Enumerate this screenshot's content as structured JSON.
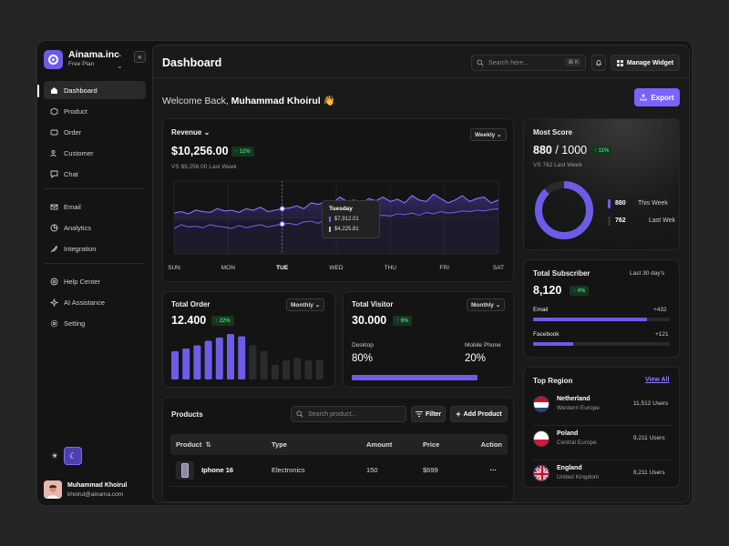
{
  "brand": {
    "name": "Ainama.inc",
    "plan": "Free Plan"
  },
  "sidebar": {
    "items": [
      {
        "label": "Dashboard"
      },
      {
        "label": "Product"
      },
      {
        "label": "Order"
      },
      {
        "label": "Customer"
      },
      {
        "label": "Chat"
      },
      {
        "label": "Email"
      },
      {
        "label": "Analytics"
      },
      {
        "label": "Integration"
      },
      {
        "label": "Help Center"
      },
      {
        "label": "AI Assistance"
      },
      {
        "label": "Setting"
      }
    ]
  },
  "user": {
    "name": "Muhammad Khoirul",
    "email": "khoirul@ainama.com"
  },
  "header": {
    "title": "Dashboard",
    "search_placeholder": "Search here...",
    "shortcut": "⌘ K",
    "manage_widget": "Manage Widget"
  },
  "welcome": {
    "prefix": "Welcome Back,",
    "name": "Muhammad Khoirul",
    "emoji": "👋",
    "export_label": "Export"
  },
  "revenue": {
    "title": "Revenue",
    "period": "Weekly",
    "value": "$10,256.00",
    "change": "↑ 12%",
    "compare": "VS $9,256.00 Last Week",
    "days": [
      "SUN",
      "MON",
      "TUE",
      "WED",
      "THU",
      "FRI",
      "SAT"
    ],
    "tooltip": {
      "day": "Tuesday",
      "v1": "$7,912.01",
      "v2": "$4,225.81"
    },
    "series_upper": [
      0.56,
      0.58,
      0.55,
      0.6,
      0.58,
      0.57,
      0.62,
      0.59,
      0.6,
      0.57,
      0.62,
      0.6,
      0.64,
      0.58,
      0.6,
      0.62,
      0.63,
      0.66,
      0.62,
      0.7,
      0.68,
      0.72,
      0.7,
      0.78,
      0.72,
      0.74,
      0.68,
      0.76,
      0.73,
      0.78,
      0.72,
      0.75,
      0.7,
      0.8,
      0.74,
      0.72,
      0.82,
      0.76,
      0.7,
      0.74,
      0.8,
      0.72,
      0.76,
      0.78,
      0.7,
      0.74
    ],
    "series_lower": [
      0.35,
      0.4,
      0.37,
      0.38,
      0.36,
      0.4,
      0.38,
      0.37,
      0.35,
      0.39,
      0.36,
      0.38,
      0.4,
      0.37,
      0.39,
      0.41,
      0.42,
      0.4,
      0.44,
      0.45,
      0.42,
      0.47,
      0.46,
      0.5,
      0.48,
      0.47,
      0.52,
      0.5,
      0.52,
      0.53,
      0.52,
      0.55,
      0.54,
      0.56,
      0.53,
      0.57,
      0.55,
      0.58,
      0.56,
      0.57,
      0.59,
      0.58,
      0.6,
      0.59,
      0.61,
      0.62
    ]
  },
  "most_score": {
    "title": "Most Score",
    "value": "880",
    "total": "/ 1000",
    "change": "↑ 11%",
    "compare": "VS 762 Last Week",
    "this_week_value": "880",
    "this_week_label": "This Week",
    "last_week_value": "762",
    "last_week_label": "Last Wek",
    "fraction": 0.88
  },
  "total_order": {
    "title": "Total Order",
    "period": "Monthly",
    "value": "12.400",
    "change": "↑ 22%",
    "bars": [
      0.62,
      0.68,
      0.75,
      0.85,
      0.92,
      1.0,
      0.95,
      0.75,
      0.62,
      0.32,
      0.42,
      0.47,
      0.42,
      0.42
    ],
    "highlight_count": 7
  },
  "total_visitor": {
    "title": "Total Visitor",
    "period": "Monthly",
    "value": "30.000",
    "change": "↑ 9%",
    "desktop_label": "Desktop",
    "desktop_pct": "80%",
    "mobile_label": "Mobile Phone",
    "mobile_pct": "20%",
    "desktop_fraction": 0.8
  },
  "subscriber": {
    "title": "Total Subscriber",
    "period": "Last 30 day's",
    "value": "8,120",
    "change": "↑ 4%",
    "email_label": "Email",
    "email_delta": "+432",
    "email_fraction": 0.83,
    "facebook_label": "Facebook",
    "facebook_delta": "+121",
    "facebook_fraction": 0.29
  },
  "products": {
    "title": "Products",
    "search_placeholder": "Search product...",
    "filter_label": "Filter",
    "add_label": "Add Product",
    "columns": [
      "Product",
      "Type",
      "Amount",
      "Price",
      "Action"
    ],
    "rows": [
      {
        "name": "Iphone 16",
        "type": "Electronics",
        "amount": "150",
        "price": "$699",
        "action": "···"
      }
    ]
  },
  "regions": {
    "title": "Top Region",
    "view_all": "View All",
    "items": [
      {
        "name": "Netherland",
        "sub": "Western Europe",
        "users": "11,512 Users"
      },
      {
        "name": "Poland",
        "sub": "Central Europe",
        "users": "9,211 Users"
      },
      {
        "name": "England",
        "sub": "United Kingdom",
        "users": "8,211 Users"
      }
    ]
  },
  "colors": {
    "accent": "#7b61ff",
    "positive": "#3ccb6b"
  }
}
